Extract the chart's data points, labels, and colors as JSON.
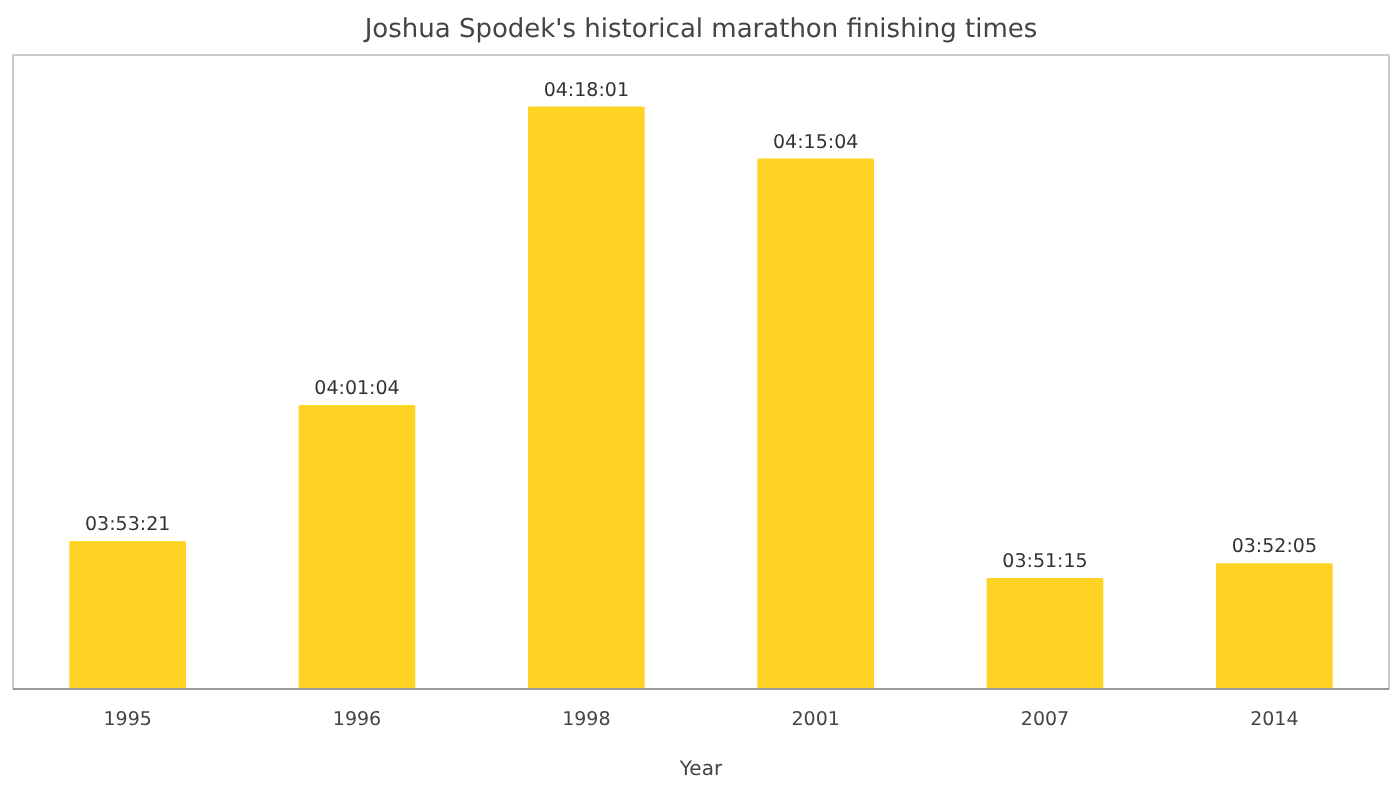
{
  "chart_data": {
    "type": "bar",
    "title": "Joshua Spodek's historical marathon finishing times",
    "xlabel": "Year",
    "categories": [
      "1995",
      "1996",
      "1998",
      "2001",
      "2007",
      "2014"
    ],
    "values": [
      3.8892,
      4.0178,
      4.3003,
      4.2511,
      3.8542,
      3.8681
    ],
    "value_labels": [
      "03:53:21",
      "04:01:04",
      "04:18:01",
      "04:15:04",
      "03:51:15",
      "03:52:05"
    ],
    "color": "#ffd324",
    "ylim": [
      3.75,
      4.35
    ],
    "tick_labels": "x",
    "grid": false
  }
}
